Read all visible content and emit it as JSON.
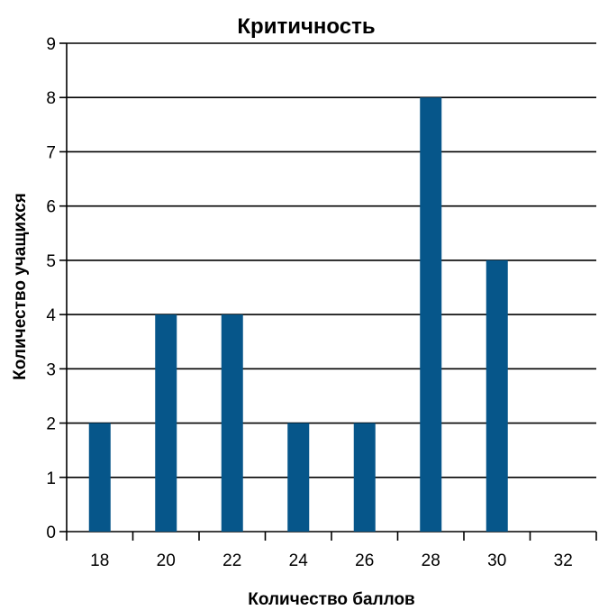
{
  "chart_data": {
    "type": "bar",
    "title": "Критичность",
    "xlabel": "Количество баллов",
    "ylabel": "Количество учащихся",
    "categories": [
      "18",
      "20",
      "22",
      "24",
      "26",
      "28",
      "30",
      "32"
    ],
    "values": [
      2,
      4,
      4,
      2,
      2,
      8,
      5,
      0
    ],
    "ylim": [
      0,
      9
    ],
    "yticks": [
      "0",
      "1",
      "2",
      "3",
      "4",
      "5",
      "6",
      "7",
      "8",
      "9"
    ],
    "grid": true,
    "legend": "none",
    "colors": {
      "bar": "#06568A",
      "grid": "#000000",
      "text": "#000000"
    }
  }
}
